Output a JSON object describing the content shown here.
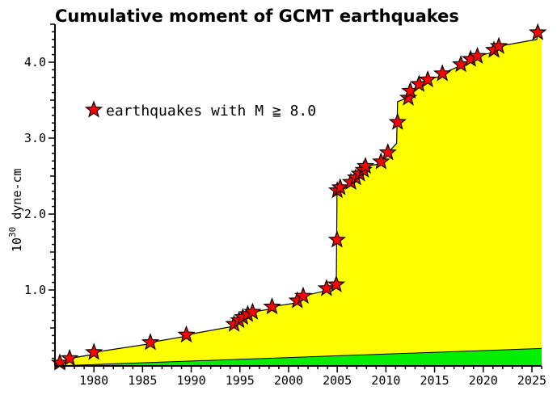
{
  "chart_data": {
    "type": "area",
    "title": "Cumulative moment of GCMT earthquakes",
    "ylabel_base": "10",
    "ylabel_exp": "30",
    "ylabel_unit": " dyne-cm",
    "xlim": [
      1976,
      2026
    ],
    "ylim": [
      0,
      4.5
    ],
    "x_ticks": [
      1980,
      1985,
      1990,
      1995,
      2000,
      2005,
      2010,
      2015,
      2020,
      2025
    ],
    "x_tick_labels": [
      "1980",
      "1985",
      "1990",
      "1995",
      "2000",
      "2005",
      "2010",
      "2015",
      "2020",
      "2025"
    ],
    "y_ticks": [
      1.0,
      2.0,
      3.0,
      4.0
    ],
    "y_tick_labels": [
      "1.0",
      "2.0",
      "3.0",
      "4.0"
    ],
    "grid": false,
    "legend": {
      "label": "earthquakes with M ≧ 8.0",
      "placement": "upper-left"
    },
    "colors": {
      "total_area": "#ffff00",
      "small_area": "#00ee00",
      "star_fill": "#ff0000",
      "outline": "#000000"
    },
    "series": [
      {
        "kind": "cumulative_total",
        "x": [
          1976.0,
          1976.5,
          1977.2,
          1977.5,
          1979.9,
          1980.0,
          1985.7,
          1985.8,
          1989.4,
          1989.5,
          1994.3,
          1994.4,
          1994.8,
          1994.9,
          1995.2,
          1995.3,
          1995.7,
          1995.8,
          1996.2,
          1996.3,
          1998.2,
          1998.3,
          2000.8,
          2000.9,
          2001.4,
          2001.5,
          2003.8,
          2003.9,
          2004.8,
          2004.9,
          2004.98,
          2005.2,
          2005.3,
          2006.3,
          2006.4,
          2006.8,
          2006.9,
          2007.2,
          2007.3,
          2007.6,
          2007.7,
          2007.8,
          2007.9,
          2009.4,
          2009.5,
          2010.1,
          2010.2,
          2011.1,
          2011.2,
          2012.2,
          2012.3,
          2012.4,
          2012.5,
          2013.3,
          2013.4,
          2014.2,
          2014.3,
          2015.7,
          2015.8,
          2017.6,
          2017.7,
          2018.6,
          2018.7,
          2019.3,
          2019.4,
          2021.0,
          2021.1,
          2021.5,
          2021.6,
          2025.5,
          2025.6,
          2026.0
        ],
        "y": [
          0.0,
          0.04,
          0.08,
          0.1,
          0.15,
          0.18,
          0.29,
          0.31,
          0.39,
          0.41,
          0.52,
          0.55,
          0.58,
          0.6,
          0.62,
          0.64,
          0.66,
          0.68,
          0.69,
          0.71,
          0.75,
          0.78,
          0.83,
          0.86,
          0.89,
          0.92,
          0.99,
          1.02,
          1.04,
          1.07,
          2.31,
          2.33,
          2.35,
          2.4,
          2.42,
          2.45,
          2.48,
          2.5,
          2.53,
          2.55,
          2.58,
          2.6,
          2.63,
          2.66,
          2.69,
          2.78,
          2.81,
          2.93,
          3.48,
          3.53,
          3.56,
          3.58,
          3.62,
          3.68,
          3.71,
          3.74,
          3.77,
          3.82,
          3.85,
          3.95,
          3.97,
          4.01,
          4.04,
          4.05,
          4.08,
          4.13,
          4.16,
          4.18,
          4.21,
          4.3,
          4.39,
          4.41
        ]
      },
      {
        "kind": "cumulative_small",
        "x": [
          1976.0,
          2026.0
        ],
        "y": [
          0.0,
          0.23
        ]
      }
    ],
    "stars": {
      "x": [
        1976.5,
        1977.5,
        1980.0,
        1985.8,
        1989.5,
        1994.4,
        1994.9,
        1995.3,
        1995.8,
        1996.3,
        1998.3,
        2000.9,
        2001.5,
        2003.9,
        2004.9,
        2004.98,
        2005.0,
        2005.3,
        2006.4,
        2006.9,
        2007.3,
        2007.7,
        2007.9,
        2009.5,
        2010.2,
        2011.2,
        2012.3,
        2012.5,
        2013.4,
        2014.3,
        2015.8,
        2017.7,
        2018.7,
        2019.4,
        2021.1,
        2021.6,
        2025.6
      ],
      "y": [
        0.04,
        0.1,
        0.18,
        0.31,
        0.41,
        0.55,
        0.6,
        0.64,
        0.68,
        0.71,
        0.78,
        0.86,
        0.92,
        1.02,
        1.07,
        1.66,
        2.31,
        2.35,
        2.42,
        2.48,
        2.53,
        2.58,
        2.63,
        2.69,
        2.81,
        3.21,
        3.53,
        3.62,
        3.71,
        3.77,
        3.85,
        3.97,
        4.04,
        4.08,
        4.16,
        4.21,
        4.39
      ]
    }
  }
}
